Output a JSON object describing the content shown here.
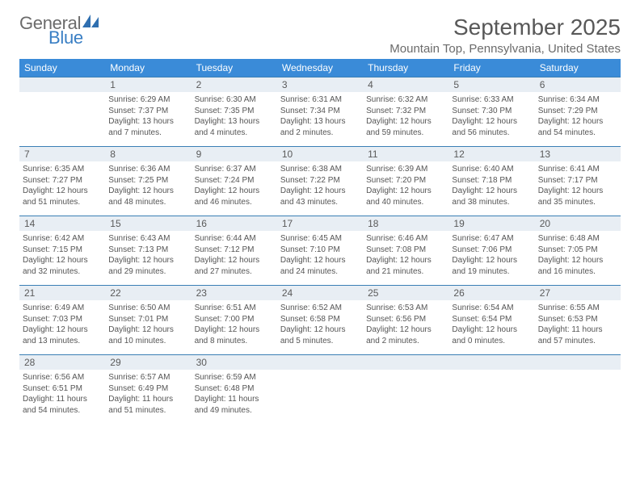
{
  "brand": {
    "word1": "General",
    "word2": "Blue",
    "icon_color": "#2f6fb0"
  },
  "title": {
    "month_year": "September 2025",
    "location": "Mountain Top, Pennsylvania, United States"
  },
  "colors": {
    "header_bg": "#3a8bd8",
    "daynum_bg": "#e8eef4",
    "daynum_border": "#3a7fb5"
  },
  "day_names": [
    "Sunday",
    "Monday",
    "Tuesday",
    "Wednesday",
    "Thursday",
    "Friday",
    "Saturday"
  ],
  "weeks": [
    [
      null,
      {
        "n": "1",
        "sr": "Sunrise: 6:29 AM",
        "ss": "Sunset: 7:37 PM",
        "d1": "Daylight: 13 hours",
        "d2": "and 7 minutes."
      },
      {
        "n": "2",
        "sr": "Sunrise: 6:30 AM",
        "ss": "Sunset: 7:35 PM",
        "d1": "Daylight: 13 hours",
        "d2": "and 4 minutes."
      },
      {
        "n": "3",
        "sr": "Sunrise: 6:31 AM",
        "ss": "Sunset: 7:34 PM",
        "d1": "Daylight: 13 hours",
        "d2": "and 2 minutes."
      },
      {
        "n": "4",
        "sr": "Sunrise: 6:32 AM",
        "ss": "Sunset: 7:32 PM",
        "d1": "Daylight: 12 hours",
        "d2": "and 59 minutes."
      },
      {
        "n": "5",
        "sr": "Sunrise: 6:33 AM",
        "ss": "Sunset: 7:30 PM",
        "d1": "Daylight: 12 hours",
        "d2": "and 56 minutes."
      },
      {
        "n": "6",
        "sr": "Sunrise: 6:34 AM",
        "ss": "Sunset: 7:29 PM",
        "d1": "Daylight: 12 hours",
        "d2": "and 54 minutes."
      }
    ],
    [
      {
        "n": "7",
        "sr": "Sunrise: 6:35 AM",
        "ss": "Sunset: 7:27 PM",
        "d1": "Daylight: 12 hours",
        "d2": "and 51 minutes."
      },
      {
        "n": "8",
        "sr": "Sunrise: 6:36 AM",
        "ss": "Sunset: 7:25 PM",
        "d1": "Daylight: 12 hours",
        "d2": "and 48 minutes."
      },
      {
        "n": "9",
        "sr": "Sunrise: 6:37 AM",
        "ss": "Sunset: 7:24 PM",
        "d1": "Daylight: 12 hours",
        "d2": "and 46 minutes."
      },
      {
        "n": "10",
        "sr": "Sunrise: 6:38 AM",
        "ss": "Sunset: 7:22 PM",
        "d1": "Daylight: 12 hours",
        "d2": "and 43 minutes."
      },
      {
        "n": "11",
        "sr": "Sunrise: 6:39 AM",
        "ss": "Sunset: 7:20 PM",
        "d1": "Daylight: 12 hours",
        "d2": "and 40 minutes."
      },
      {
        "n": "12",
        "sr": "Sunrise: 6:40 AM",
        "ss": "Sunset: 7:18 PM",
        "d1": "Daylight: 12 hours",
        "d2": "and 38 minutes."
      },
      {
        "n": "13",
        "sr": "Sunrise: 6:41 AM",
        "ss": "Sunset: 7:17 PM",
        "d1": "Daylight: 12 hours",
        "d2": "and 35 minutes."
      }
    ],
    [
      {
        "n": "14",
        "sr": "Sunrise: 6:42 AM",
        "ss": "Sunset: 7:15 PM",
        "d1": "Daylight: 12 hours",
        "d2": "and 32 minutes."
      },
      {
        "n": "15",
        "sr": "Sunrise: 6:43 AM",
        "ss": "Sunset: 7:13 PM",
        "d1": "Daylight: 12 hours",
        "d2": "and 29 minutes."
      },
      {
        "n": "16",
        "sr": "Sunrise: 6:44 AM",
        "ss": "Sunset: 7:12 PM",
        "d1": "Daylight: 12 hours",
        "d2": "and 27 minutes."
      },
      {
        "n": "17",
        "sr": "Sunrise: 6:45 AM",
        "ss": "Sunset: 7:10 PM",
        "d1": "Daylight: 12 hours",
        "d2": "and 24 minutes."
      },
      {
        "n": "18",
        "sr": "Sunrise: 6:46 AM",
        "ss": "Sunset: 7:08 PM",
        "d1": "Daylight: 12 hours",
        "d2": "and 21 minutes."
      },
      {
        "n": "19",
        "sr": "Sunrise: 6:47 AM",
        "ss": "Sunset: 7:06 PM",
        "d1": "Daylight: 12 hours",
        "d2": "and 19 minutes."
      },
      {
        "n": "20",
        "sr": "Sunrise: 6:48 AM",
        "ss": "Sunset: 7:05 PM",
        "d1": "Daylight: 12 hours",
        "d2": "and 16 minutes."
      }
    ],
    [
      {
        "n": "21",
        "sr": "Sunrise: 6:49 AM",
        "ss": "Sunset: 7:03 PM",
        "d1": "Daylight: 12 hours",
        "d2": "and 13 minutes."
      },
      {
        "n": "22",
        "sr": "Sunrise: 6:50 AM",
        "ss": "Sunset: 7:01 PM",
        "d1": "Daylight: 12 hours",
        "d2": "and 10 minutes."
      },
      {
        "n": "23",
        "sr": "Sunrise: 6:51 AM",
        "ss": "Sunset: 7:00 PM",
        "d1": "Daylight: 12 hours",
        "d2": "and 8 minutes."
      },
      {
        "n": "24",
        "sr": "Sunrise: 6:52 AM",
        "ss": "Sunset: 6:58 PM",
        "d1": "Daylight: 12 hours",
        "d2": "and 5 minutes."
      },
      {
        "n": "25",
        "sr": "Sunrise: 6:53 AM",
        "ss": "Sunset: 6:56 PM",
        "d1": "Daylight: 12 hours",
        "d2": "and 2 minutes."
      },
      {
        "n": "26",
        "sr": "Sunrise: 6:54 AM",
        "ss": "Sunset: 6:54 PM",
        "d1": "Daylight: 12 hours",
        "d2": "and 0 minutes."
      },
      {
        "n": "27",
        "sr": "Sunrise: 6:55 AM",
        "ss": "Sunset: 6:53 PM",
        "d1": "Daylight: 11 hours",
        "d2": "and 57 minutes."
      }
    ],
    [
      {
        "n": "28",
        "sr": "Sunrise: 6:56 AM",
        "ss": "Sunset: 6:51 PM",
        "d1": "Daylight: 11 hours",
        "d2": "and 54 minutes."
      },
      {
        "n": "29",
        "sr": "Sunrise: 6:57 AM",
        "ss": "Sunset: 6:49 PM",
        "d1": "Daylight: 11 hours",
        "d2": "and 51 minutes."
      },
      {
        "n": "30",
        "sr": "Sunrise: 6:59 AM",
        "ss": "Sunset: 6:48 PM",
        "d1": "Daylight: 11 hours",
        "d2": "and 49 minutes."
      },
      null,
      null,
      null,
      null
    ]
  ]
}
